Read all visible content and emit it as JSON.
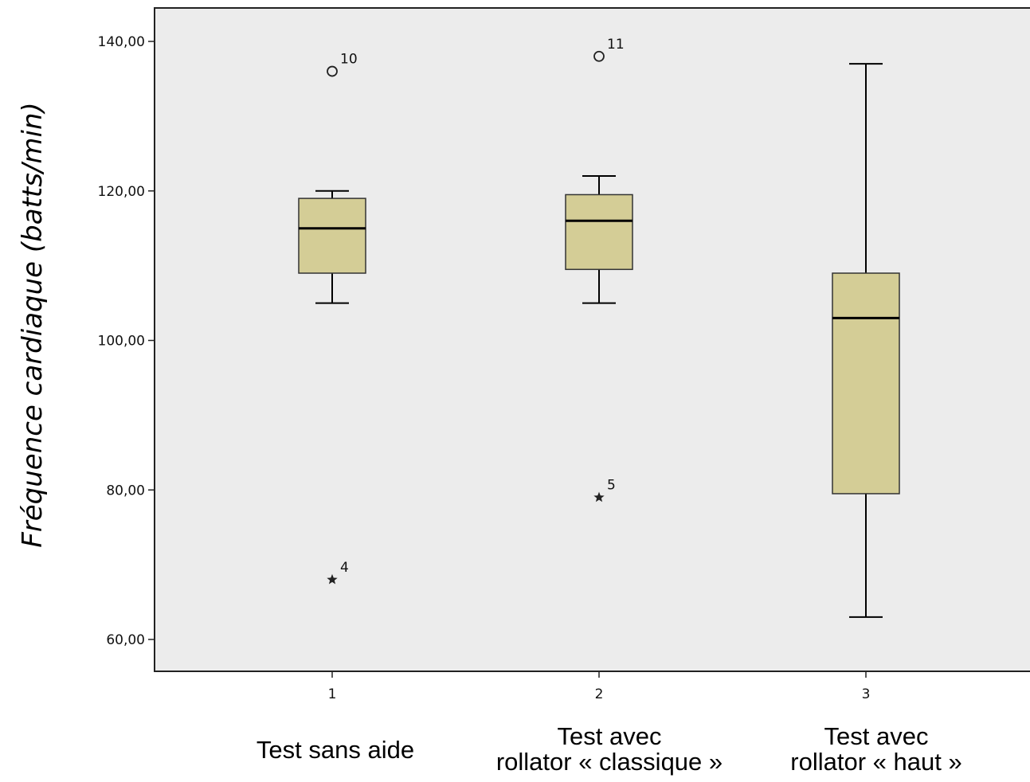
{
  "chart_data": {
    "type": "boxplot",
    "ylabel": "Fréquence cardiaque (batts/min)",
    "ylim": [
      56,
      146
    ],
    "yticks": [
      60,
      80,
      100,
      120,
      140
    ],
    "ytick_labels": [
      "60,00",
      "80,00",
      "100,00",
      "120,00",
      "140,00"
    ],
    "groups": [
      {
        "tick": "1",
        "label_lines": [
          "Test sans aide"
        ],
        "whisker_low": 105,
        "q1": 109,
        "median": 115,
        "q3": 119,
        "whisker_high": 120,
        "outliers": [
          {
            "value": 136,
            "marker": "circle",
            "label": "10"
          },
          {
            "value": 68,
            "marker": "star",
            "label": "4"
          }
        ]
      },
      {
        "tick": "2",
        "label_lines": [
          "Test avec",
          "rollator « classique »"
        ],
        "whisker_low": 105,
        "q1": 109.5,
        "median": 116,
        "q3": 119.5,
        "whisker_high": 122,
        "outliers": [
          {
            "value": 138,
            "marker": "circle",
            "label": "11"
          },
          {
            "value": 79,
            "marker": "star",
            "label": "5"
          }
        ]
      },
      {
        "tick": "3",
        "label_lines": [
          "Test avec",
          "rollator « haut »"
        ],
        "whisker_low": 63,
        "q1": 79.5,
        "median": 103,
        "q3": 109,
        "whisker_high": 137,
        "outliers": []
      }
    ],
    "colors": {
      "box_fill": "#d4cd96",
      "plot_bg": "#ececec",
      "line": "#000000"
    }
  }
}
